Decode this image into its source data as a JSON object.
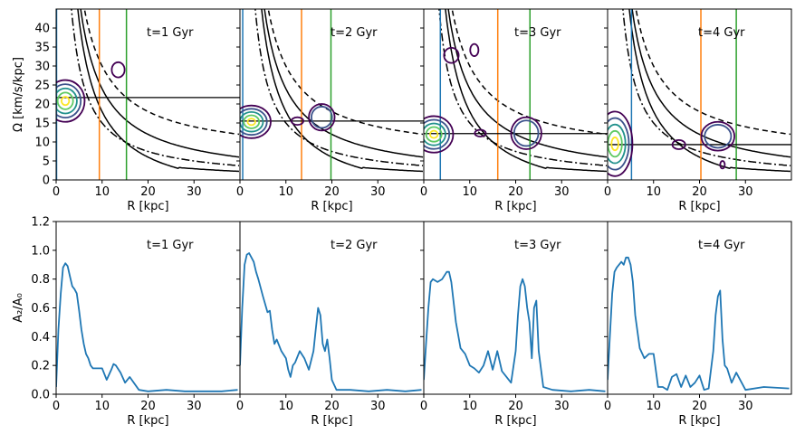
{
  "chart_data": [
    {
      "type": "contour",
      "panel_title": "t=1 Gyr",
      "xlabel": "R [kpc]",
      "ylabel": "Ω [km/s/kpc]",
      "xlim": [
        0,
        40
      ],
      "ylim": [
        0,
        45
      ],
      "xticks": [
        0,
        10,
        20,
        30
      ],
      "yticks": [
        0,
        5,
        10,
        15,
        20,
        25,
        30,
        35,
        40
      ],
      "pattern_speed": 21.7,
      "vlines": [
        {
          "name": "blue",
          "x": 0.1,
          "color": "#1f77b4"
        },
        {
          "name": "orange",
          "x": 9.4,
          "color": "#ff7f0e"
        },
        {
          "name": "green",
          "x": 15.3,
          "color": "#2ca02c"
        }
      ],
      "contours": [
        {
          "name": "bar",
          "cx": 2.0,
          "cy": 20.8,
          "rx": 4.2,
          "ry": 5.5
        },
        {
          "name": "blob",
          "cx": 13.5,
          "cy": 29.0,
          "rx": 1.4,
          "ry": 2.0
        }
      ]
    },
    {
      "type": "contour",
      "panel_title": "t=2 Gyr",
      "xlabel": "R [kpc]",
      "xlim": [
        0,
        40
      ],
      "ylim": [
        0,
        45
      ],
      "xticks": [
        0,
        10,
        20,
        30
      ],
      "pattern_speed": 15.5,
      "vlines": [
        {
          "name": "blue",
          "x": 0.6,
          "color": "#1f77b4"
        },
        {
          "name": "orange",
          "x": 13.4,
          "color": "#ff7f0e"
        },
        {
          "name": "green",
          "x": 19.8,
          "color": "#2ca02c"
        }
      ],
      "contours": [
        {
          "name": "bar",
          "cx": 2.5,
          "cy": 15.3,
          "rx": 4.2,
          "ry": 4.3
        },
        {
          "name": "blob",
          "cx": 12.5,
          "cy": 15.5,
          "rx": 1.3,
          "ry": 1.0
        },
        {
          "name": "ring",
          "cx": 17.8,
          "cy": 16.5,
          "rx": 2.8,
          "ry": 3.5
        }
      ]
    },
    {
      "type": "contour",
      "panel_title": "t=3 Gyr",
      "xlabel": "R [kpc]",
      "xlim": [
        0,
        40
      ],
      "ylim": [
        0,
        45
      ],
      "xticks": [
        0,
        10,
        20,
        30
      ],
      "pattern_speed": 12.2,
      "vlines": [
        {
          "name": "blue",
          "x": 3.6,
          "color": "#1f77b4"
        },
        {
          "name": "orange",
          "x": 16.1,
          "color": "#ff7f0e"
        },
        {
          "name": "green",
          "x": 23.1,
          "color": "#2ca02c"
        }
      ],
      "contours": [
        {
          "name": "bar",
          "cx": 2.2,
          "cy": 12.0,
          "rx": 4.2,
          "ry": 4.8
        },
        {
          "name": "blob-high",
          "cx": 6.0,
          "cy": 32.8,
          "rx": 1.6,
          "ry": 2.0
        },
        {
          "name": "blob-high-2",
          "cx": 11.0,
          "cy": 34.2,
          "rx": 0.9,
          "ry": 1.6
        },
        {
          "name": "blob",
          "cx": 12.3,
          "cy": 12.3,
          "rx": 1.2,
          "ry": 0.9
        },
        {
          "name": "ring",
          "cx": 22.3,
          "cy": 12.3,
          "rx": 3.3,
          "ry": 4.2
        }
      ]
    },
    {
      "type": "contour",
      "panel_title": "t=4 Gyr",
      "xlabel": "R [kpc]",
      "xlim": [
        0,
        40
      ],
      "ylim": [
        0,
        45
      ],
      "xticks": [
        0,
        10,
        20,
        30
      ],
      "pattern_speed": 9.3,
      "vlines": [
        {
          "name": "blue",
          "x": 5.2,
          "color": "#1f77b4"
        },
        {
          "name": "orange",
          "x": 20.3,
          "color": "#ff7f0e"
        },
        {
          "name": "green",
          "x": 28.0,
          "color": "#2ca02c"
        }
      ],
      "contours": [
        {
          "name": "bar",
          "cx": 1.6,
          "cy": 9.5,
          "rx": 3.8,
          "ry": 8.5
        },
        {
          "name": "blob",
          "cx": 15.5,
          "cy": 9.3,
          "rx": 1.4,
          "ry": 1.2
        },
        {
          "name": "ring",
          "cx": 24.0,
          "cy": 11.5,
          "rx": 3.6,
          "ry": 3.8
        },
        {
          "name": "blob-low",
          "cx": 25.0,
          "cy": 4.0,
          "rx": 0.5,
          "ry": 1.0
        }
      ]
    },
    {
      "type": "line",
      "panel_title": "t=1 Gyr",
      "xlabel": "R [kpc]",
      "ylabel": "A₂/A₀",
      "xlim": [
        0,
        40
      ],
      "ylim": [
        0,
        1.2
      ],
      "xticks": [
        0,
        10,
        20,
        30
      ],
      "yticks": [
        0.0,
        0.2,
        0.4,
        0.6,
        0.8,
        1.0,
        1.2
      ],
      "color": "#1f77b4",
      "x": [
        0,
        0.5,
        1,
        1.5,
        2,
        2.5,
        3,
        3.5,
        4,
        4.5,
        5,
        5.5,
        6,
        6.5,
        7,
        7.5,
        8,
        9,
        10,
        11,
        12,
        12.5,
        13,
        14,
        15,
        16,
        18,
        20,
        24,
        28,
        32,
        36,
        39.5
      ],
      "y": [
        0.05,
        0.45,
        0.7,
        0.88,
        0.91,
        0.89,
        0.82,
        0.75,
        0.73,
        0.7,
        0.58,
        0.45,
        0.35,
        0.28,
        0.25,
        0.2,
        0.18,
        0.18,
        0.18,
        0.1,
        0.17,
        0.21,
        0.2,
        0.15,
        0.08,
        0.12,
        0.03,
        0.02,
        0.03,
        0.02,
        0.02,
        0.02,
        0.03
      ]
    },
    {
      "type": "line",
      "panel_title": "t=2 Gyr",
      "xlabel": "R [kpc]",
      "xlim": [
        0,
        40
      ],
      "ylim": [
        0,
        1.2
      ],
      "xticks": [
        0,
        10,
        20,
        30
      ],
      "color": "#1f77b4",
      "x": [
        0,
        0.5,
        1,
        1.5,
        2,
        2.5,
        3,
        3.5,
        4,
        5,
        6,
        6.5,
        7,
        7.5,
        8,
        9,
        10,
        10.5,
        11,
        11.5,
        12,
        13,
        14,
        15,
        16,
        16.5,
        17,
        17.5,
        18,
        18.5,
        19,
        19.5,
        20,
        21,
        24,
        28,
        32,
        36,
        39.5
      ],
      "y": [
        0.2,
        0.6,
        0.9,
        0.97,
        0.98,
        0.95,
        0.92,
        0.85,
        0.8,
        0.68,
        0.57,
        0.58,
        0.45,
        0.35,
        0.38,
        0.3,
        0.25,
        0.17,
        0.12,
        0.2,
        0.22,
        0.3,
        0.25,
        0.17,
        0.3,
        0.45,
        0.6,
        0.55,
        0.35,
        0.3,
        0.38,
        0.25,
        0.1,
        0.03,
        0.03,
        0.02,
        0.03,
        0.02,
        0.03
      ]
    },
    {
      "type": "line",
      "panel_title": "t=3 Gyr",
      "xlabel": "R [kpc]",
      "xlim": [
        0,
        40
      ],
      "ylim": [
        0,
        1.2
      ],
      "xticks": [
        0,
        10,
        20,
        30
      ],
      "color": "#1f77b4",
      "x": [
        0,
        0.5,
        1,
        1.5,
        2,
        3,
        4,
        5,
        5.5,
        6,
        7,
        8,
        9,
        10,
        11,
        12,
        13,
        14,
        15,
        16,
        17,
        18,
        19,
        20,
        20.5,
        21,
        21.5,
        22,
        22.5,
        23,
        23.5,
        24,
        24.5,
        25,
        26,
        28,
        32,
        36,
        39.5
      ],
      "y": [
        0.1,
        0.35,
        0.6,
        0.78,
        0.8,
        0.78,
        0.8,
        0.85,
        0.85,
        0.78,
        0.5,
        0.32,
        0.28,
        0.2,
        0.18,
        0.15,
        0.2,
        0.3,
        0.17,
        0.3,
        0.16,
        0.12,
        0.08,
        0.3,
        0.55,
        0.75,
        0.8,
        0.75,
        0.6,
        0.5,
        0.25,
        0.6,
        0.65,
        0.3,
        0.05,
        0.03,
        0.02,
        0.03,
        0.02
      ]
    },
    {
      "type": "line",
      "panel_title": "t=4 Gyr",
      "xlabel": "R [kpc]",
      "xlim": [
        0,
        40
      ],
      "ylim": [
        0,
        1.2
      ],
      "xticks": [
        0,
        10,
        20,
        30
      ],
      "color": "#1f77b4",
      "x": [
        0,
        0.5,
        1,
        1.5,
        2,
        3,
        3.5,
        4,
        4.5,
        5,
        5.5,
        6,
        7,
        8,
        9,
        10,
        11,
        12,
        13,
        14,
        15,
        16,
        17,
        18,
        19,
        20,
        21,
        22,
        23,
        23.5,
        24,
        24.5,
        25,
        25.5,
        26,
        27,
        28,
        30,
        34,
        39.5
      ],
      "y": [
        0.1,
        0.4,
        0.7,
        0.85,
        0.88,
        0.92,
        0.9,
        0.95,
        0.95,
        0.9,
        0.78,
        0.55,
        0.32,
        0.25,
        0.28,
        0.28,
        0.05,
        0.05,
        0.03,
        0.12,
        0.14,
        0.05,
        0.13,
        0.05,
        0.08,
        0.13,
        0.03,
        0.04,
        0.3,
        0.55,
        0.68,
        0.72,
        0.38,
        0.2,
        0.18,
        0.08,
        0.15,
        0.03,
        0.05,
        0.04
      ]
    }
  ]
}
